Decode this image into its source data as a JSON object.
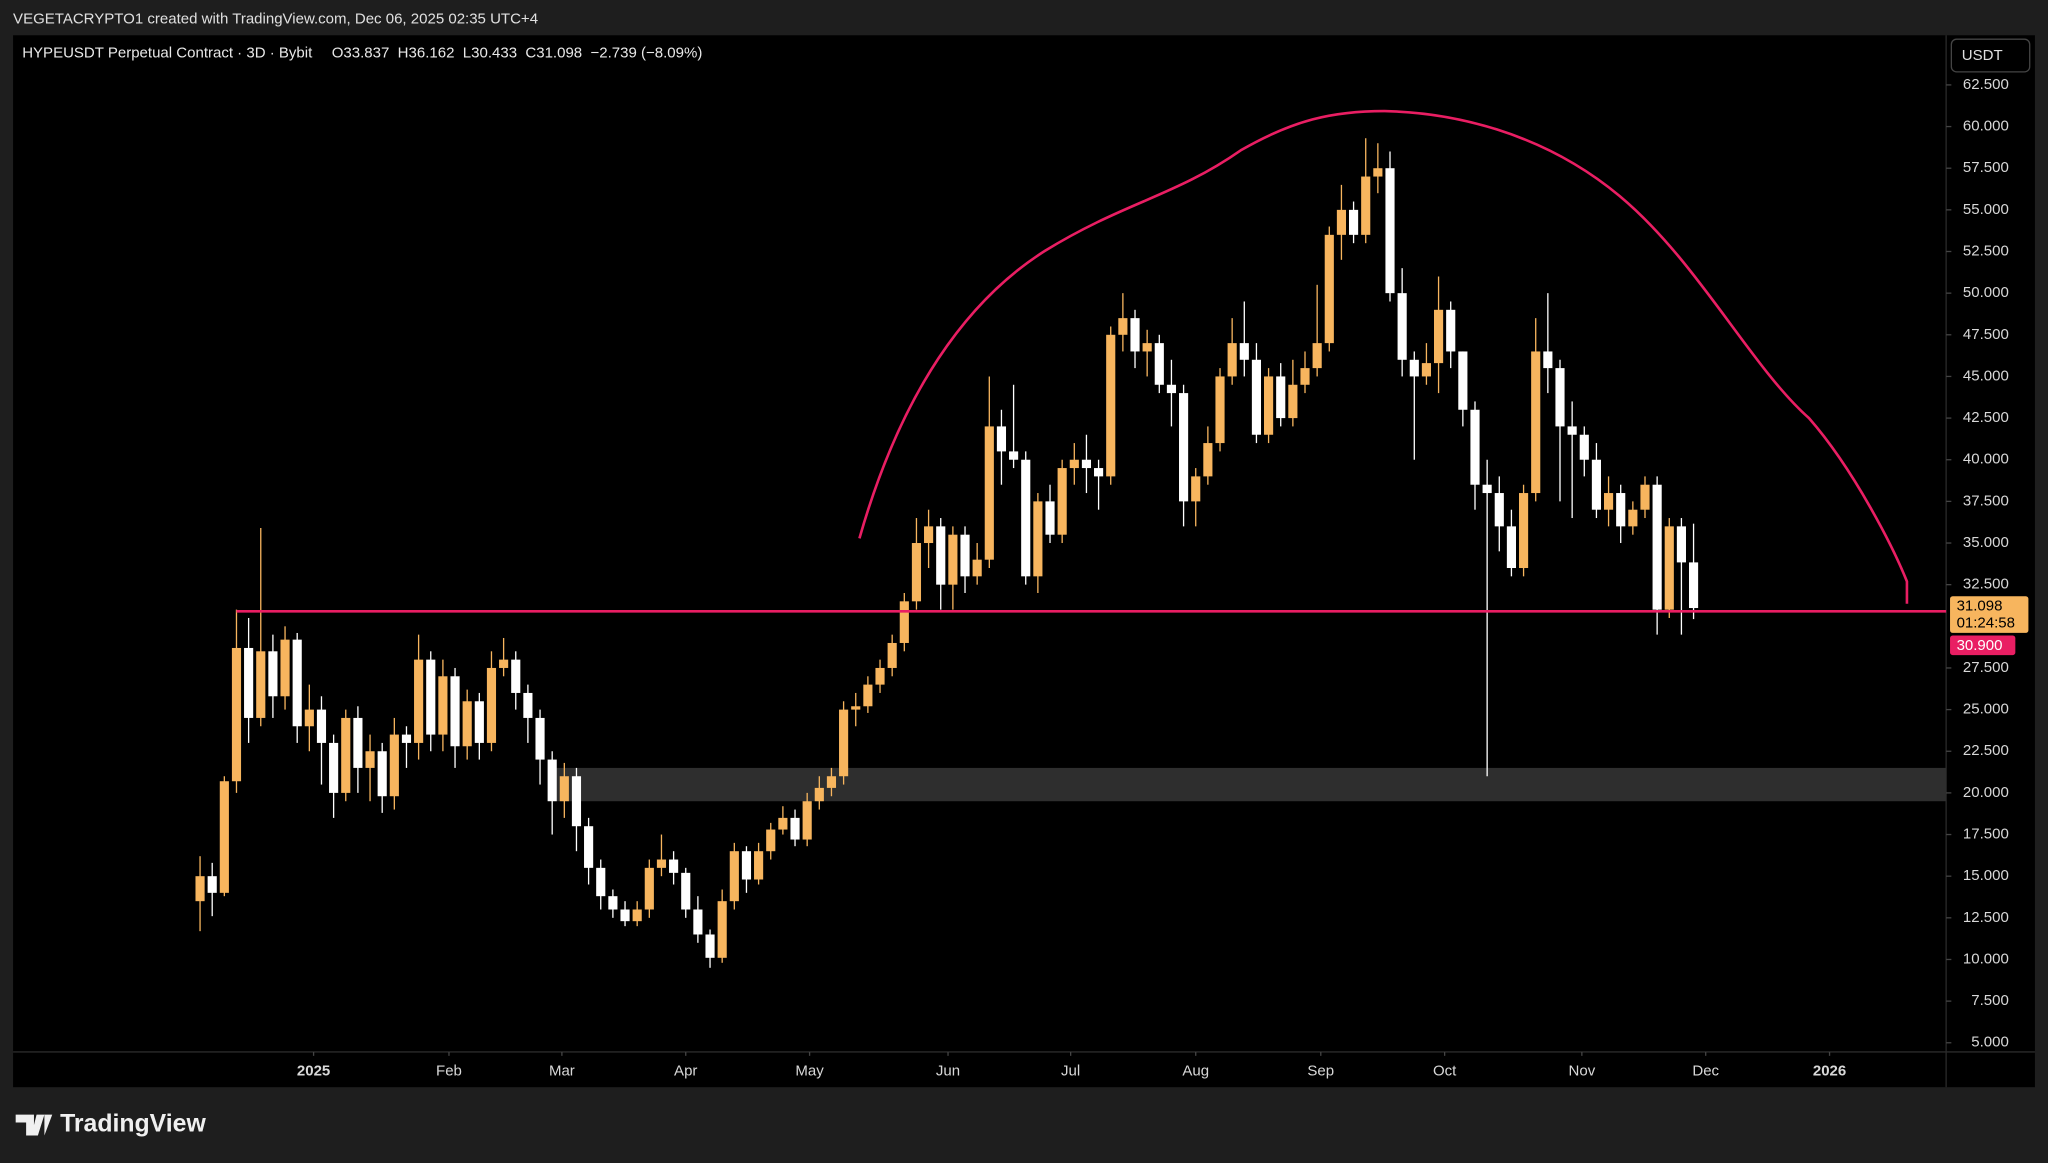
{
  "header": {
    "attribution": "VEGETACRYPTO1 created with TradingView.com, Dec 06, 2025 02:35 UTC+4",
    "symbol": "HYPEUSDT Perpetual Contract · 3D · Bybit",
    "ohlc": "O33.837  H36.162  L30.433  C31.098  −2.739 (−8.09%)"
  },
  "currency": "USDT",
  "branding": "TradingView",
  "chart_data": {
    "type": "candlestick",
    "open": [
      13.5,
      15.0,
      14.0,
      20.7,
      28.7,
      24.5,
      28.5,
      25.8,
      29.2,
      24.0,
      25.0,
      23.0,
      20.0,
      24.5,
      21.5,
      22.5,
      19.8,
      23.5,
      23.0,
      28.0,
      23.5,
      27.0,
      22.8,
      25.5,
      23.0,
      27.5,
      28.0,
      26.0,
      24.5,
      22.0,
      19.5,
      21.0,
      18.0,
      15.5,
      13.8,
      13.0,
      12.3,
      13.0,
      15.5,
      16.0,
      15.2,
      13.0,
      11.5,
      10.1,
      13.5,
      16.5,
      14.8,
      16.5,
      17.8,
      18.5,
      17.2,
      19.5,
      20.3,
      21.0,
      25.0,
      25.2,
      26.5,
      27.5,
      29.0,
      31.5,
      35.0,
      36.0,
      32.5,
      35.5,
      33.0,
      34.0,
      42.0,
      40.5,
      40.0,
      33.0,
      37.5,
      35.5,
      39.5,
      40.0,
      39.5,
      39.0,
      47.5,
      48.5,
      46.5,
      47.0,
      44.5,
      44.0,
      37.5,
      39.0,
      41.0,
      45.0,
      47.0,
      46.0,
      41.5,
      45.0,
      42.5,
      44.5,
      45.5,
      47.0,
      53.5,
      55.0,
      53.5,
      57.0,
      57.5,
      50.0,
      46.0,
      45.0,
      45.8,
      49.0,
      46.5,
      43.0,
      38.5,
      38.0,
      36.0,
      33.5,
      38.0,
      46.5,
      45.5,
      42.0,
      41.5,
      40.0,
      37.0,
      38.0,
      36.0,
      37.0,
      38.5,
      31.0,
      36.0,
      33.837
    ],
    "high": [
      16.2,
      15.8,
      21.0,
      31.0,
      30.5,
      35.9,
      29.5,
      30.0,
      29.6,
      26.5,
      25.8,
      23.5,
      25.0,
      25.2,
      23.5,
      23.0,
      24.5,
      24.0,
      29.5,
      28.5,
      28.0,
      27.5,
      26.2,
      26.0,
      28.5,
      29.3,
      28.5,
      26.5,
      25.0,
      22.5,
      21.8,
      21.5,
      18.5,
      16.0,
      14.2,
      13.5,
      13.5,
      16.0,
      17.5,
      16.5,
      15.5,
      13.8,
      11.8,
      14.2,
      17.0,
      16.8,
      17.0,
      18.2,
      19.2,
      19.0,
      20.0,
      21.0,
      21.5,
      25.5,
      26.0,
      27.0,
      28.0,
      29.5,
      32.0,
      36.5,
      37.0,
      36.5,
      36.0,
      36.0,
      35.0,
      45.0,
      43.0,
      44.5,
      40.5,
      38.0,
      38.5,
      40.0,
      41.0,
      41.5,
      40.0,
      48.0,
      50.0,
      49.0,
      47.8,
      47.5,
      46.0,
      44.5,
      39.5,
      42.0,
      45.5,
      48.5,
      49.5,
      47.0,
      45.5,
      45.8,
      46.0,
      46.5,
      50.5,
      54.0,
      56.5,
      55.5,
      59.3,
      59.0,
      58.5,
      51.5,
      46.5,
      47.0,
      51.0,
      49.5,
      46.5,
      43.5,
      40.0,
      39.0,
      37.0,
      38.5,
      48.5,
      50.0,
      46.0,
      43.5,
      42.0,
      41.0,
      39.0,
      38.5,
      37.5,
      39.0,
      39.0,
      36.5,
      36.5,
      36.162
    ],
    "low": [
      11.7,
      12.6,
      13.8,
      20.0,
      23.0,
      24.0,
      24.5,
      25.0,
      23.0,
      22.5,
      20.5,
      18.5,
      19.5,
      20.0,
      19.5,
      18.8,
      19.0,
      21.5,
      22.0,
      22.5,
      22.5,
      21.5,
      22.0,
      22.0,
      22.5,
      27.0,
      25.0,
      23.0,
      20.5,
      17.5,
      18.5,
      16.5,
      14.5,
      13.0,
      12.5,
      12.0,
      12.0,
      12.5,
      15.0,
      14.5,
      12.5,
      11.0,
      9.5,
      9.8,
      13.0,
      14.0,
      14.5,
      16.0,
      17.5,
      16.8,
      16.8,
      19.0,
      19.8,
      20.5,
      24.0,
      24.8,
      26.0,
      27.0,
      28.5,
      31.0,
      33.5,
      31.0,
      31.0,
      32.0,
      32.5,
      33.5,
      38.5,
      39.5,
      32.5,
      32.0,
      35.0,
      35.0,
      38.5,
      38.0,
      37.0,
      38.5,
      46.5,
      45.5,
      45.0,
      44.0,
      42.0,
      36.0,
      36.0,
      38.5,
      40.5,
      44.5,
      45.0,
      41.0,
      41.0,
      42.0,
      42.0,
      44.0,
      45.0,
      46.5,
      52.0,
      53.0,
      53.0,
      56.0,
      49.5,
      45.0,
      40.0,
      44.5,
      44.0,
      45.5,
      42.0,
      37.0,
      21.0,
      34.5,
      33.0,
      33.0,
      37.5,
      44.0,
      37.5,
      36.5,
      39.0,
      36.5,
      36.0,
      35.0,
      35.5,
      36.5,
      29.5,
      30.5,
      29.5,
      30.433
    ],
    "close": [
      15.0,
      14.0,
      20.7,
      28.7,
      24.5,
      28.5,
      25.8,
      29.2,
      24.0,
      25.0,
      23.0,
      20.0,
      24.5,
      21.5,
      22.5,
      19.8,
      23.5,
      23.0,
      28.0,
      23.5,
      27.0,
      22.8,
      25.5,
      23.0,
      27.5,
      28.0,
      26.0,
      24.5,
      22.0,
      19.5,
      21.0,
      18.0,
      15.5,
      13.8,
      13.0,
      12.3,
      13.0,
      15.5,
      16.0,
      15.2,
      13.0,
      11.5,
      10.1,
      13.5,
      16.5,
      14.8,
      16.5,
      17.8,
      18.5,
      17.2,
      19.5,
      20.3,
      21.0,
      25.0,
      25.2,
      26.5,
      27.5,
      29.0,
      31.5,
      35.0,
      36.0,
      32.5,
      35.5,
      33.0,
      34.0,
      42.0,
      40.5,
      40.0,
      33.0,
      37.5,
      35.5,
      39.5,
      40.0,
      39.5,
      39.0,
      47.5,
      48.5,
      46.5,
      47.0,
      44.5,
      44.0,
      37.5,
      39.0,
      41.0,
      45.0,
      47.0,
      46.0,
      41.5,
      45.0,
      42.5,
      44.5,
      45.5,
      47.0,
      53.5,
      55.0,
      53.5,
      57.0,
      57.5,
      50.0,
      46.0,
      45.0,
      45.8,
      49.0,
      46.5,
      43.0,
      38.5,
      38.0,
      36.0,
      33.5,
      38.0,
      46.5,
      45.5,
      42.0,
      41.5,
      40.0,
      37.0,
      38.0,
      36.0,
      37.0,
      38.5,
      31.0,
      36.0,
      33.837,
      31.098
    ],
    "up_color": "#f7b55e",
    "down_color": "#ffffff",
    "xlim": [
      -15.4,
      143.8
    ],
    "xticks": [
      {
        "value": 9.35,
        "label": "2025"
      },
      {
        "value": 20.5,
        "label": "Feb"
      },
      {
        "value": 29.8,
        "label": "Mar"
      },
      {
        "value": 40.0,
        "label": "Apr"
      },
      {
        "value": 50.2,
        "label": "May"
      },
      {
        "value": 61.6,
        "label": "Jun"
      },
      {
        "value": 71.7,
        "label": "Jul"
      },
      {
        "value": 82.0,
        "label": "Aug"
      },
      {
        "value": 92.3,
        "label": "Sep"
      },
      {
        "value": 102.5,
        "label": "Oct"
      },
      {
        "value": 113.8,
        "label": "Nov"
      },
      {
        "value": 124.0,
        "label": "Dec"
      },
      {
        "value": 134.2,
        "label": "2026"
      }
    ],
    "ylim": [
      4.45,
      65.48
    ],
    "yticks": [
      {
        "value": 5,
        "label": "5.000"
      },
      {
        "value": 7.5,
        "label": "7.500"
      },
      {
        "value": 10,
        "label": "10.000"
      },
      {
        "value": 12.5,
        "label": "12.500"
      },
      {
        "value": 15,
        "label": "15.000"
      },
      {
        "value": 17.5,
        "label": "17.500"
      },
      {
        "value": 20,
        "label": "20.000"
      },
      {
        "value": 22.5,
        "label": "22.500"
      },
      {
        "value": 25,
        "label": "25.000"
      },
      {
        "value": 27.5,
        "label": "27.500"
      },
      {
        "value": 32.5,
        "label": "32.500"
      },
      {
        "value": 35,
        "label": "35.000"
      },
      {
        "value": 37.5,
        "label": "37.500"
      },
      {
        "value": 40,
        "label": "40.000"
      },
      {
        "value": 42.5,
        "label": "42.500"
      },
      {
        "value": 45,
        "label": "45.000"
      },
      {
        "value": 47.5,
        "label": "47.500"
      },
      {
        "value": 50,
        "label": "50.000"
      },
      {
        "value": 52.5,
        "label": "52.500"
      },
      {
        "value": 55,
        "label": "55.000"
      },
      {
        "value": 57.5,
        "label": "57.500"
      },
      {
        "value": 60,
        "label": "60.000"
      },
      {
        "value": 62.5,
        "label": "62.500"
      }
    ],
    "grid": false,
    "level": {
      "value": 30.9,
      "label": "30.900",
      "color": "#e91e63"
    },
    "zone": [
      19.5,
      21.5
    ],
    "countdown": "01:24:58"
  }
}
